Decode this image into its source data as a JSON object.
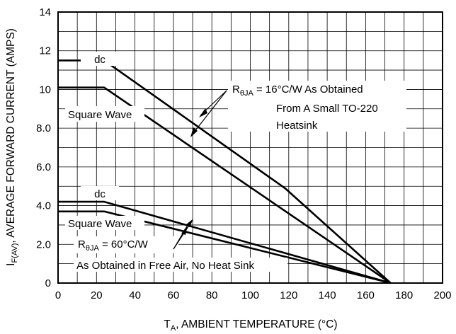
{
  "chart_data": {
    "type": "line",
    "xlabel_main": "T",
    "xlabel_sub": "A",
    "xlabel_rest": ", AMBIENT TEMPERATURE (°C)",
    "ylabel_main": "I",
    "ylabel_sub": "F(AV)",
    "ylabel_rest": ", AVERAGE FORWARD CURRENT (AMPS)",
    "xlim": [
      0,
      200
    ],
    "ylim": [
      0,
      14
    ],
    "x_ticks": [
      0,
      20,
      40,
      60,
      80,
      100,
      120,
      140,
      160,
      180,
      200
    ],
    "y_ticks": [
      0,
      2.0,
      4.0,
      6.0,
      8.0,
      10,
      12,
      14
    ],
    "y_tick_labels": [
      "0",
      "2.0",
      "4.0",
      "6.0",
      "8.0",
      "10",
      "12",
      "14"
    ],
    "grid": true,
    "series": [
      {
        "name": "dc",
        "points": [
          [
            0,
            11.5
          ],
          [
            24,
            11.5
          ],
          [
            118,
            4.9
          ],
          [
            173,
            0
          ]
        ]
      },
      {
        "name": "Square Wave",
        "points": [
          [
            0,
            10.1
          ],
          [
            24,
            10.1
          ],
          [
            173,
            0
          ]
        ]
      },
      {
        "name": "dc",
        "points": [
          [
            0,
            4.2
          ],
          [
            24,
            4.2
          ],
          [
            173,
            0
          ]
        ]
      },
      {
        "name": "Square Wave",
        "points": [
          [
            0,
            3.7
          ],
          [
            24,
            3.7
          ],
          [
            173,
            0
          ]
        ]
      }
    ],
    "annotations": {
      "dc_upper": "dc",
      "sw_upper": "Square Wave",
      "dc_lower": "dc",
      "sw_lower": "Square Wave",
      "r_upper_prefix": "R",
      "r_upper_sub": "θJA",
      "r_upper_rest": " =  16°C/W As Obtained",
      "r_upper_line2": "From A Small TO-220",
      "r_upper_line3": "Heatsink",
      "r_lower_prefix": "R",
      "r_lower_sub": "θJA",
      "r_lower_rest": " = 60°C/W",
      "r_lower_line2": "As Obtained in Free Air, No Heat Sink"
    }
  }
}
